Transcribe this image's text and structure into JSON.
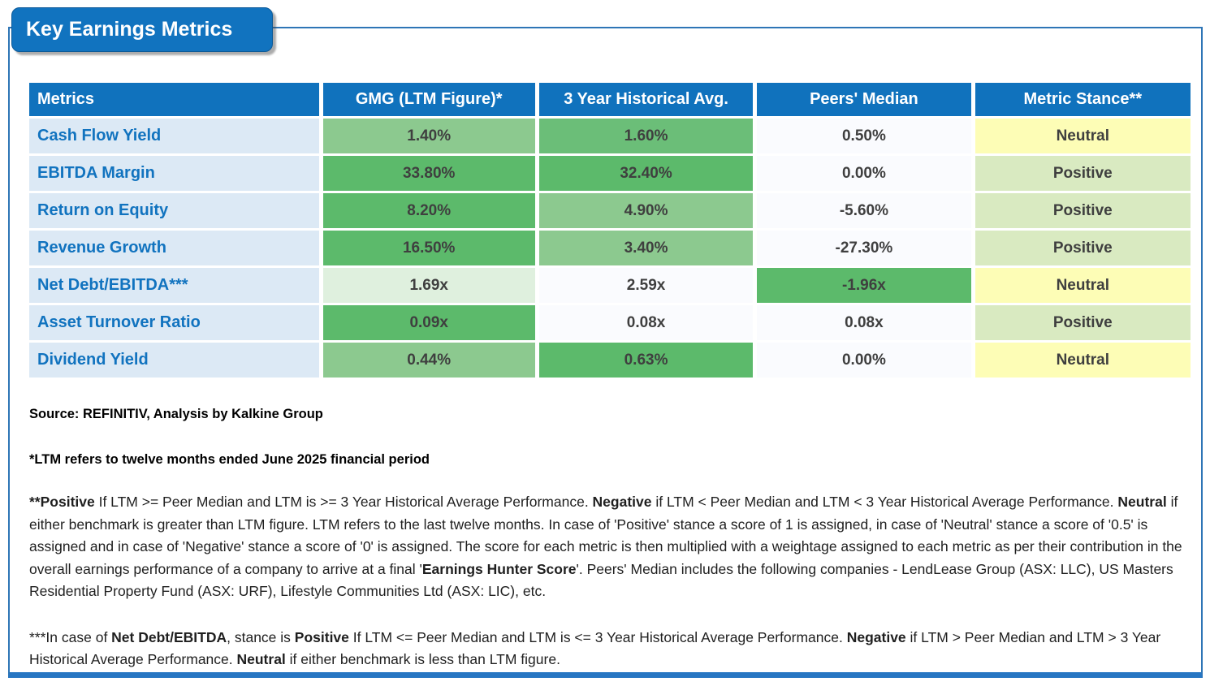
{
  "title": "Key Earnings Metrics",
  "colors": {
    "header_bg": "#1072BD",
    "label_bg": "#DCE9F5",
    "label_text": "#1173BF",
    "frame_border": "#2E75B6",
    "green_dark": "#5CBA6B",
    "green_mid": "#8CC98F",
    "green_pale": "#DFF0DE",
    "neutral_yellow": "#FDFDB6",
    "positive_green": "#D9EAC1",
    "plain_cell": "#FAFBFE"
  },
  "table": {
    "columns": [
      "Metrics",
      "GMG (LTM Figure)*",
      "3 Year Historical Avg.",
      "Peers' Median",
      "Metric Stance**"
    ],
    "rows": [
      {
        "metric": "Cash Flow Yield",
        "cells": [
          {
            "text": "1.40%",
            "bg": "#8CC98F"
          },
          {
            "text": "1.60%",
            "bg": "#6BBE78"
          },
          {
            "text": "0.50%",
            "bg": "#FAFBFE"
          },
          {
            "text": "Neutral",
            "bg": "#FDFDB6"
          }
        ]
      },
      {
        "metric": "EBITDA Margin",
        "cells": [
          {
            "text": "33.80%",
            "bg": "#5CBA6B"
          },
          {
            "text": "32.40%",
            "bg": "#5CBA6B"
          },
          {
            "text": "0.00%",
            "bg": "#FAFBFE"
          },
          {
            "text": "Positive",
            "bg": "#D9EAC1"
          }
        ]
      },
      {
        "metric": "Return on Equity",
        "cells": [
          {
            "text": "8.20%",
            "bg": "#5CBA6B"
          },
          {
            "text": "4.90%",
            "bg": "#8CC98F"
          },
          {
            "text": "-5.60%",
            "bg": "#FAFBFE"
          },
          {
            "text": "Positive",
            "bg": "#D9EAC1"
          }
        ]
      },
      {
        "metric": "Revenue Growth",
        "cells": [
          {
            "text": "16.50%",
            "bg": "#5CBA6B"
          },
          {
            "text": "3.40%",
            "bg": "#8CC98F"
          },
          {
            "text": "-27.30%",
            "bg": "#FAFBFE"
          },
          {
            "text": "Positive",
            "bg": "#D9EAC1"
          }
        ]
      },
      {
        "metric": "Net Debt/EBITDA***",
        "cells": [
          {
            "text": "1.69x",
            "bg": "#DFF0DE"
          },
          {
            "text": "2.59x",
            "bg": "#FAFBFE"
          },
          {
            "text": "-1.96x",
            "bg": "#5CBA6B"
          },
          {
            "text": "Neutral",
            "bg": "#FDFDB6"
          }
        ]
      },
      {
        "metric": "Asset Turnover Ratio",
        "cells": [
          {
            "text": "0.09x",
            "bg": "#5CBA6B"
          },
          {
            "text": "0.08x",
            "bg": "#FAFBFE"
          },
          {
            "text": "0.08x",
            "bg": "#FAFBFE"
          },
          {
            "text": "Positive",
            "bg": "#D9EAC1"
          }
        ]
      },
      {
        "metric": "Dividend Yield",
        "cells": [
          {
            "text": "0.44%",
            "bg": "#8CC98F"
          },
          {
            "text": "0.63%",
            "bg": "#5CBA6B"
          },
          {
            "text": "0.00%",
            "bg": "#FAFBFE"
          },
          {
            "text": "Neutral",
            "bg": "#FDFDB6"
          }
        ]
      }
    ]
  },
  "notes": {
    "source": "Source: REFINITIV, Analysis by Kalkine Group",
    "ltm": "*LTM refers to twelve months ended June 2025 financial period",
    "stance": [
      {
        "t": "**Positive",
        "b": true
      },
      {
        "t": " If LTM >= Peer Median and LTM is >= 3 Year Historical Average Performance. ",
        "b": false
      },
      {
        "t": "Negative",
        "b": true
      },
      {
        "t": " if LTM < Peer Median and LTM < 3 Year Historical Average Performance. ",
        "b": false
      },
      {
        "t": "Neutral",
        "b": true
      },
      {
        "t": " if either benchmark is greater than LTM figure. LTM refers to the last twelve months. In case of 'Positive' stance a score of 1 is assigned, in case of 'Neutral' stance a score of '0.5' is assigned and in case of 'Negative' stance a score of '0' is assigned. The score for each metric is then multiplied with a weightage assigned to each metric as per their contribution in the overall earnings performance of a company to arrive at a final '",
        "b": false
      },
      {
        "t": "Earnings Hunter Score",
        "b": true
      },
      {
        "t": "'. Peers' Median includes the following companies - LendLease Group (ASX: LLC), US Masters Residential Property Fund (ASX: URF), Lifestyle Communities Ltd (ASX: LIC), etc.",
        "b": false
      }
    ],
    "netdebt": [
      {
        "t": "***In case of ",
        "b": false
      },
      {
        "t": "Net Debt/EBITDA",
        "b": true
      },
      {
        "t": ", stance is ",
        "b": false
      },
      {
        "t": "Positive",
        "b": true
      },
      {
        "t": " If LTM <= Peer Median and LTM is <= 3 Year Historical Average Performance. ",
        "b": false
      },
      {
        "t": "Negative",
        "b": true
      },
      {
        "t": " if LTM > Peer Median and LTM > 3 Year Historical Average Performance. ",
        "b": false
      },
      {
        "t": "Neutral",
        "b": true
      },
      {
        "t": " if either benchmark is less than LTM figure.",
        "b": false
      }
    ]
  }
}
